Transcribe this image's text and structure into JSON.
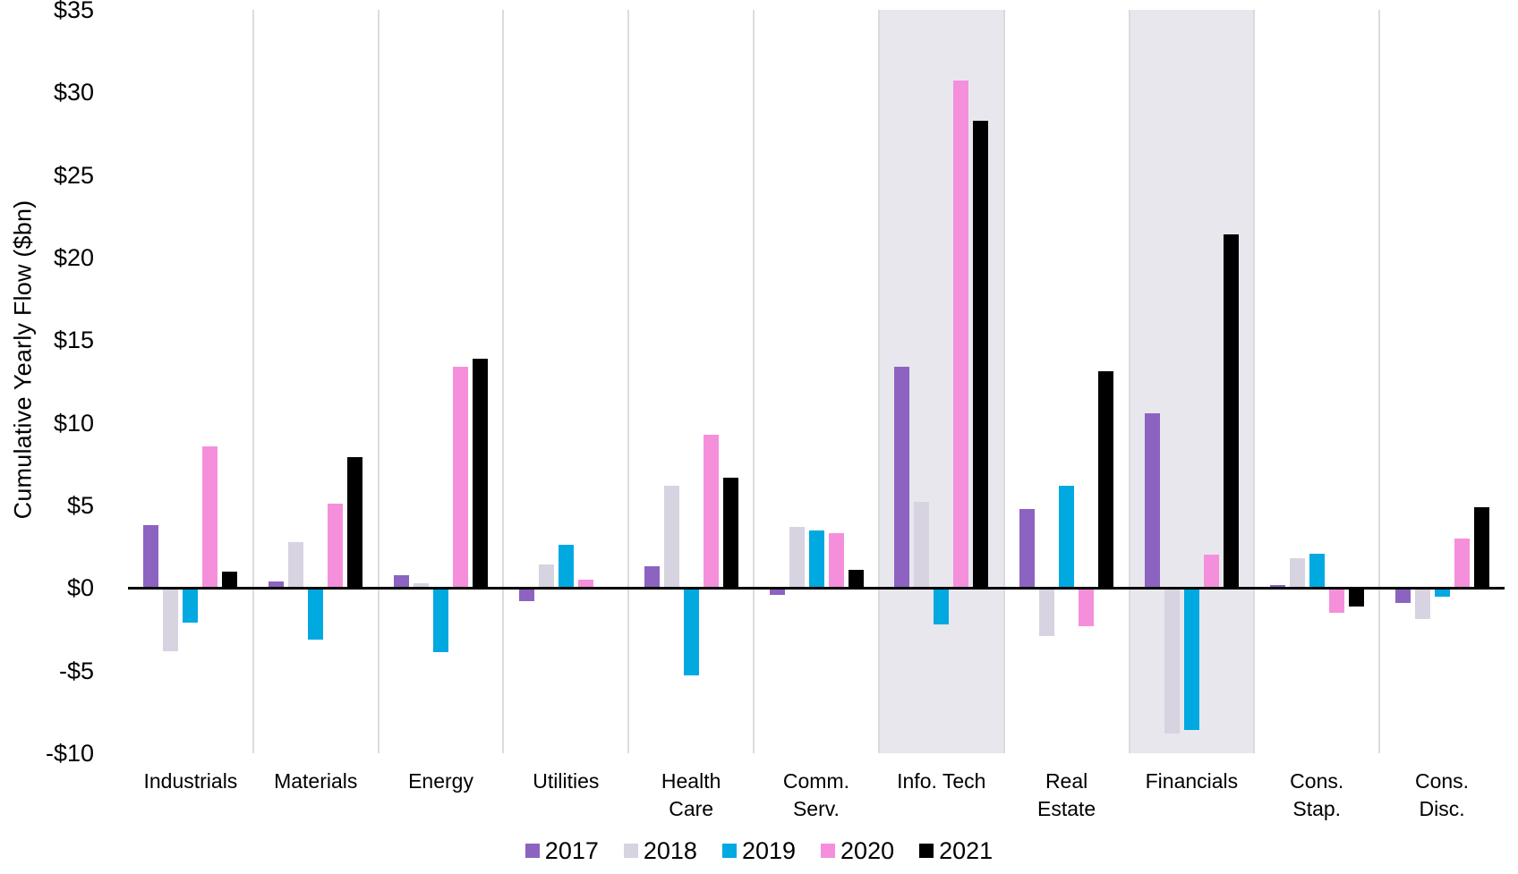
{
  "page": {
    "background": "#FFFFFF"
  },
  "chart_data": {
    "type": "bar",
    "title": "",
    "xlabel": "",
    "ylabel": "Cumulative Yearly Flow ($bn)",
    "ylim": [
      -10,
      35
    ],
    "y_ticks": [
      {
        "value": 35,
        "label": "$35"
      },
      {
        "value": 30,
        "label": "$30"
      },
      {
        "value": 25,
        "label": "$25"
      },
      {
        "value": 20,
        "label": "$20"
      },
      {
        "value": 15,
        "label": "$15"
      },
      {
        "value": 10,
        "label": "$10"
      },
      {
        "value": 5,
        "label": "$5"
      },
      {
        "value": 0,
        "label": "$0"
      },
      {
        "value": -5,
        "label": "-$5"
      },
      {
        "value": -10,
        "label": "-$10"
      }
    ],
    "categories": [
      "Industrials",
      "Materials",
      "Energy",
      "Utilities",
      "Health Care",
      "Comm. Serv.",
      "Info. Tech",
      "Real Estate",
      "Financials",
      "Cons. Stap.",
      "Cons. Disc."
    ],
    "category_label_lines": [
      [
        "Industrials"
      ],
      [
        "Materials"
      ],
      [
        "Energy"
      ],
      [
        "Utilities"
      ],
      [
        "Health",
        "Care"
      ],
      [
        "Comm.",
        "Serv."
      ],
      [
        "Info. Tech"
      ],
      [
        "Real",
        "Estate"
      ],
      [
        "Financials"
      ],
      [
        "Cons.",
        "Stap."
      ],
      [
        "Cons.",
        "Disc."
      ]
    ],
    "highlighted_categories": [
      "Info. Tech",
      "Financials"
    ],
    "series": [
      {
        "name": "2017",
        "color": "#8C63C0",
        "values": [
          3.8,
          0.4,
          0.8,
          -0.8,
          1.3,
          -0.4,
          13.4,
          4.8,
          10.6,
          0.2,
          -0.9
        ]
      },
      {
        "name": "2018",
        "color": "#D7D3E0",
        "values": [
          -3.8,
          2.8,
          0.3,
          1.4,
          6.2,
          3.7,
          5.2,
          -2.9,
          -8.8,
          1.8,
          -1.9
        ]
      },
      {
        "name": "2019",
        "color": "#00A9E0",
        "values": [
          -2.1,
          -3.1,
          -3.9,
          2.6,
          -5.3,
          3.5,
          -2.2,
          6.2,
          -8.6,
          2.1,
          -0.5
        ]
      },
      {
        "name": "2020",
        "color": "#F58FDB",
        "values": [
          8.6,
          5.1,
          13.4,
          0.5,
          9.3,
          3.3,
          30.7,
          -2.3,
          2.0,
          -1.5,
          3.0
        ]
      },
      {
        "name": "2021",
        "color": "#000000",
        "values": [
          1.0,
          7.9,
          13.9,
          0.0,
          6.7,
          1.1,
          28.3,
          13.1,
          21.4,
          -1.1,
          4.9
        ]
      }
    ],
    "legend_position": "bottom",
    "grid": "category-dividers-only"
  },
  "style_colors": {
    "highlight_bg": "#E8E7ED",
    "divider": "#DCDAE1",
    "zero_line": "#000000",
    "text": "#000000"
  }
}
